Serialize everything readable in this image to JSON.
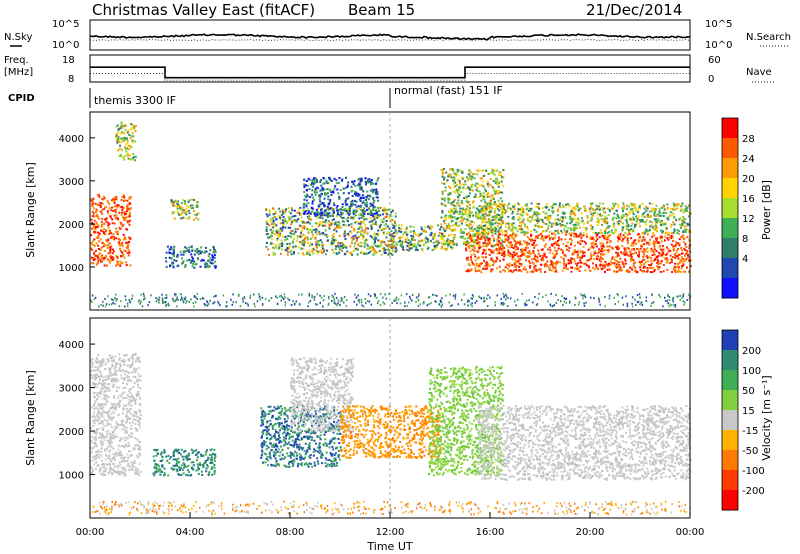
{
  "header": {
    "title": "Christmas Valley East (fitACF)",
    "beam": "Beam 15",
    "date": "21/Dec/2014"
  },
  "side_labels": {
    "nsky": "N.Sky",
    "nsearch": "N.Search",
    "freq_line1": "Freq.",
    "freq_line2": "[MHz]",
    "nave": "Nave",
    "cpid": "CPID"
  },
  "cpid": {
    "left": "themis 3300 IF",
    "right": "normal (fast) 151 IF",
    "switch_hour": 12
  },
  "noise_panel": {
    "left_ticks": [
      "10^5",
      "10^0"
    ],
    "right_ticks": [
      "10^5",
      "10^0"
    ]
  },
  "freq_panel": {
    "left_ticks": [
      "18",
      "8"
    ],
    "right_ticks": [
      "60",
      "0"
    ],
    "freq_steps": [
      {
        "from": 0,
        "to": 3,
        "value": 13.5
      },
      {
        "from": 3,
        "to": 15,
        "value": 9.6
      },
      {
        "from": 15,
        "to": 24,
        "value": 13.5
      }
    ]
  },
  "chart_data": [
    {
      "type": "heatmap",
      "name": "Power",
      "xlabel": "",
      "ylabel": "Slant Range [km]",
      "xlim": [
        0,
        24
      ],
      "ylim": [
        0,
        4600
      ],
      "yticks": [
        "1000",
        "2000",
        "3000",
        "4000"
      ],
      "colorbar": {
        "label": "Power [dB]",
        "ticks": [
          "28",
          "24",
          "20",
          "16",
          "12",
          "8",
          "4"
        ],
        "colors": [
          "#ff0000",
          "#ff5a00",
          "#ff9b00",
          "#ffd400",
          "#aadc32",
          "#3fae54",
          "#2f7d6a",
          "#1f48b0",
          "#1010ff"
        ]
      },
      "regions": [
        {
          "t0": 0.0,
          "t1": 1.6,
          "r0": 1050,
          "r1": 2700,
          "level": "high"
        },
        {
          "t0": 1.0,
          "t1": 1.8,
          "r0": 3500,
          "r1": 4400,
          "level": "mid"
        },
        {
          "t0": 3.0,
          "t1": 5.0,
          "r0": 1000,
          "r1": 1500,
          "level": "low"
        },
        {
          "t0": 3.2,
          "t1": 4.3,
          "r0": 2100,
          "r1": 2600,
          "level": "mid"
        },
        {
          "t0": 7.0,
          "t1": 12.2,
          "r0": 1300,
          "r1": 2400,
          "level": "mixed"
        },
        {
          "t0": 8.5,
          "t1": 11.5,
          "r0": 2200,
          "r1": 3100,
          "level": "low"
        },
        {
          "t0": 12.0,
          "t1": 14.5,
          "r0": 1400,
          "r1": 2000,
          "level": "mixed"
        },
        {
          "t0": 14.0,
          "t1": 16.5,
          "r0": 1500,
          "r1": 3300,
          "level": "mid"
        },
        {
          "t0": 15.0,
          "t1": 24.0,
          "r0": 900,
          "r1": 1800,
          "level": "high"
        },
        {
          "t0": 15.5,
          "t1": 24.0,
          "r0": 1800,
          "r1": 2500,
          "level": "mid"
        }
      ]
    },
    {
      "type": "heatmap",
      "name": "Velocity",
      "xlabel": "Time UT",
      "ylabel": "Slant Range [km]",
      "xlim": [
        0,
        24
      ],
      "ylim": [
        0,
        4600
      ],
      "xticks": [
        "00:00",
        "04:00",
        "08:00",
        "12:00",
        "16:00",
        "20:00",
        "00:00"
      ],
      "yticks": [
        "1000",
        "2000",
        "3000",
        "4000"
      ],
      "colorbar": {
        "label": "Velocity [m s⁻¹]",
        "ticks": [
          "200",
          "100",
          "50",
          "15",
          "-15",
          "-50",
          "-100",
          "-200"
        ],
        "colors": [
          "#1f3fb4",
          "#2f8c70",
          "#3fae54",
          "#7fd03c",
          "#c8c8c8",
          "#ffb000",
          "#ff7a00",
          "#ff3a00",
          "#ff0000"
        ]
      },
      "regions": [
        {
          "t0": 0.0,
          "t1": 2.0,
          "r0": 1000,
          "r1": 3800,
          "level": "near-zero"
        },
        {
          "t0": 2.5,
          "t1": 5.0,
          "r0": 1000,
          "r1": 1600,
          "level": "toward"
        },
        {
          "t0": 6.8,
          "t1": 10.0,
          "r0": 1200,
          "r1": 2600,
          "level": "toward-strong"
        },
        {
          "t0": 8.0,
          "t1": 10.5,
          "r0": 2000,
          "r1": 3700,
          "level": "near-zero"
        },
        {
          "t0": 10.0,
          "t1": 14.0,
          "r0": 1400,
          "r1": 2600,
          "level": "away"
        },
        {
          "t0": 13.5,
          "t1": 16.5,
          "r0": 1000,
          "r1": 3500,
          "level": "toward-weak"
        },
        {
          "t0": 15.5,
          "t1": 24.0,
          "r0": 900,
          "r1": 2600,
          "level": "near-zero"
        }
      ]
    }
  ]
}
